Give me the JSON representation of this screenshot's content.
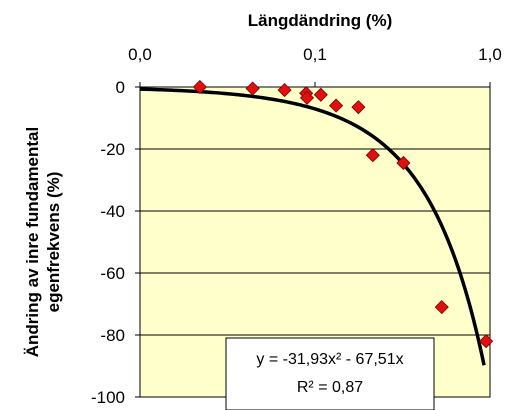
{
  "chart_data": {
    "type": "scatter",
    "xlabel": "Längdändring (%)",
    "ylabel_lines": [
      "Ändring av inre fundamental",
      "egenfrekvens (%)"
    ],
    "x_scale": "log",
    "xlim": [
      0.01,
      1.0
    ],
    "ylim": [
      -100,
      0
    ],
    "x_tick_labels": [
      {
        "value": 0.01,
        "label": "0,0"
      },
      {
        "value": 0.1,
        "label": "0,1"
      },
      {
        "value": 1.0,
        "label": "1,0"
      }
    ],
    "y_tick_labels": [
      {
        "value": 0,
        "label": "0"
      },
      {
        "value": -20,
        "label": "-20"
      },
      {
        "value": -40,
        "label": "-40"
      },
      {
        "value": -60,
        "label": "-60"
      },
      {
        "value": -80,
        "label": "-80"
      },
      {
        "value": -100,
        "label": "-100"
      }
    ],
    "grid": "horizontal",
    "series": [
      {
        "marker": "diamond",
        "color": "#e01010",
        "points": [
          {
            "x": 0.022,
            "y": 0.0
          },
          {
            "x": 0.044,
            "y": -0.5
          },
          {
            "x": 0.067,
            "y": -1.0
          },
          {
            "x": 0.089,
            "y": -2.0
          },
          {
            "x": 0.09,
            "y": -3.5
          },
          {
            "x": 0.108,
            "y": -2.5
          },
          {
            "x": 0.132,
            "y": -6.0
          },
          {
            "x": 0.177,
            "y": -6.5
          },
          {
            "x": 0.214,
            "y": -22.0
          },
          {
            "x": 0.32,
            "y": -24.5
          },
          {
            "x": 0.53,
            "y": -71.0
          },
          {
            "x": 0.95,
            "y": -82.0
          }
        ]
      }
    ],
    "trendline": {
      "type": "polynomial",
      "coefficients": {
        "a": -31.93,
        "b": -67.51
      },
      "color": "#000000",
      "equation_text": "y = -31,93x² - 67,51x",
      "r2_text": "R² = 0,87"
    },
    "plot_background": "#ffffcc"
  }
}
